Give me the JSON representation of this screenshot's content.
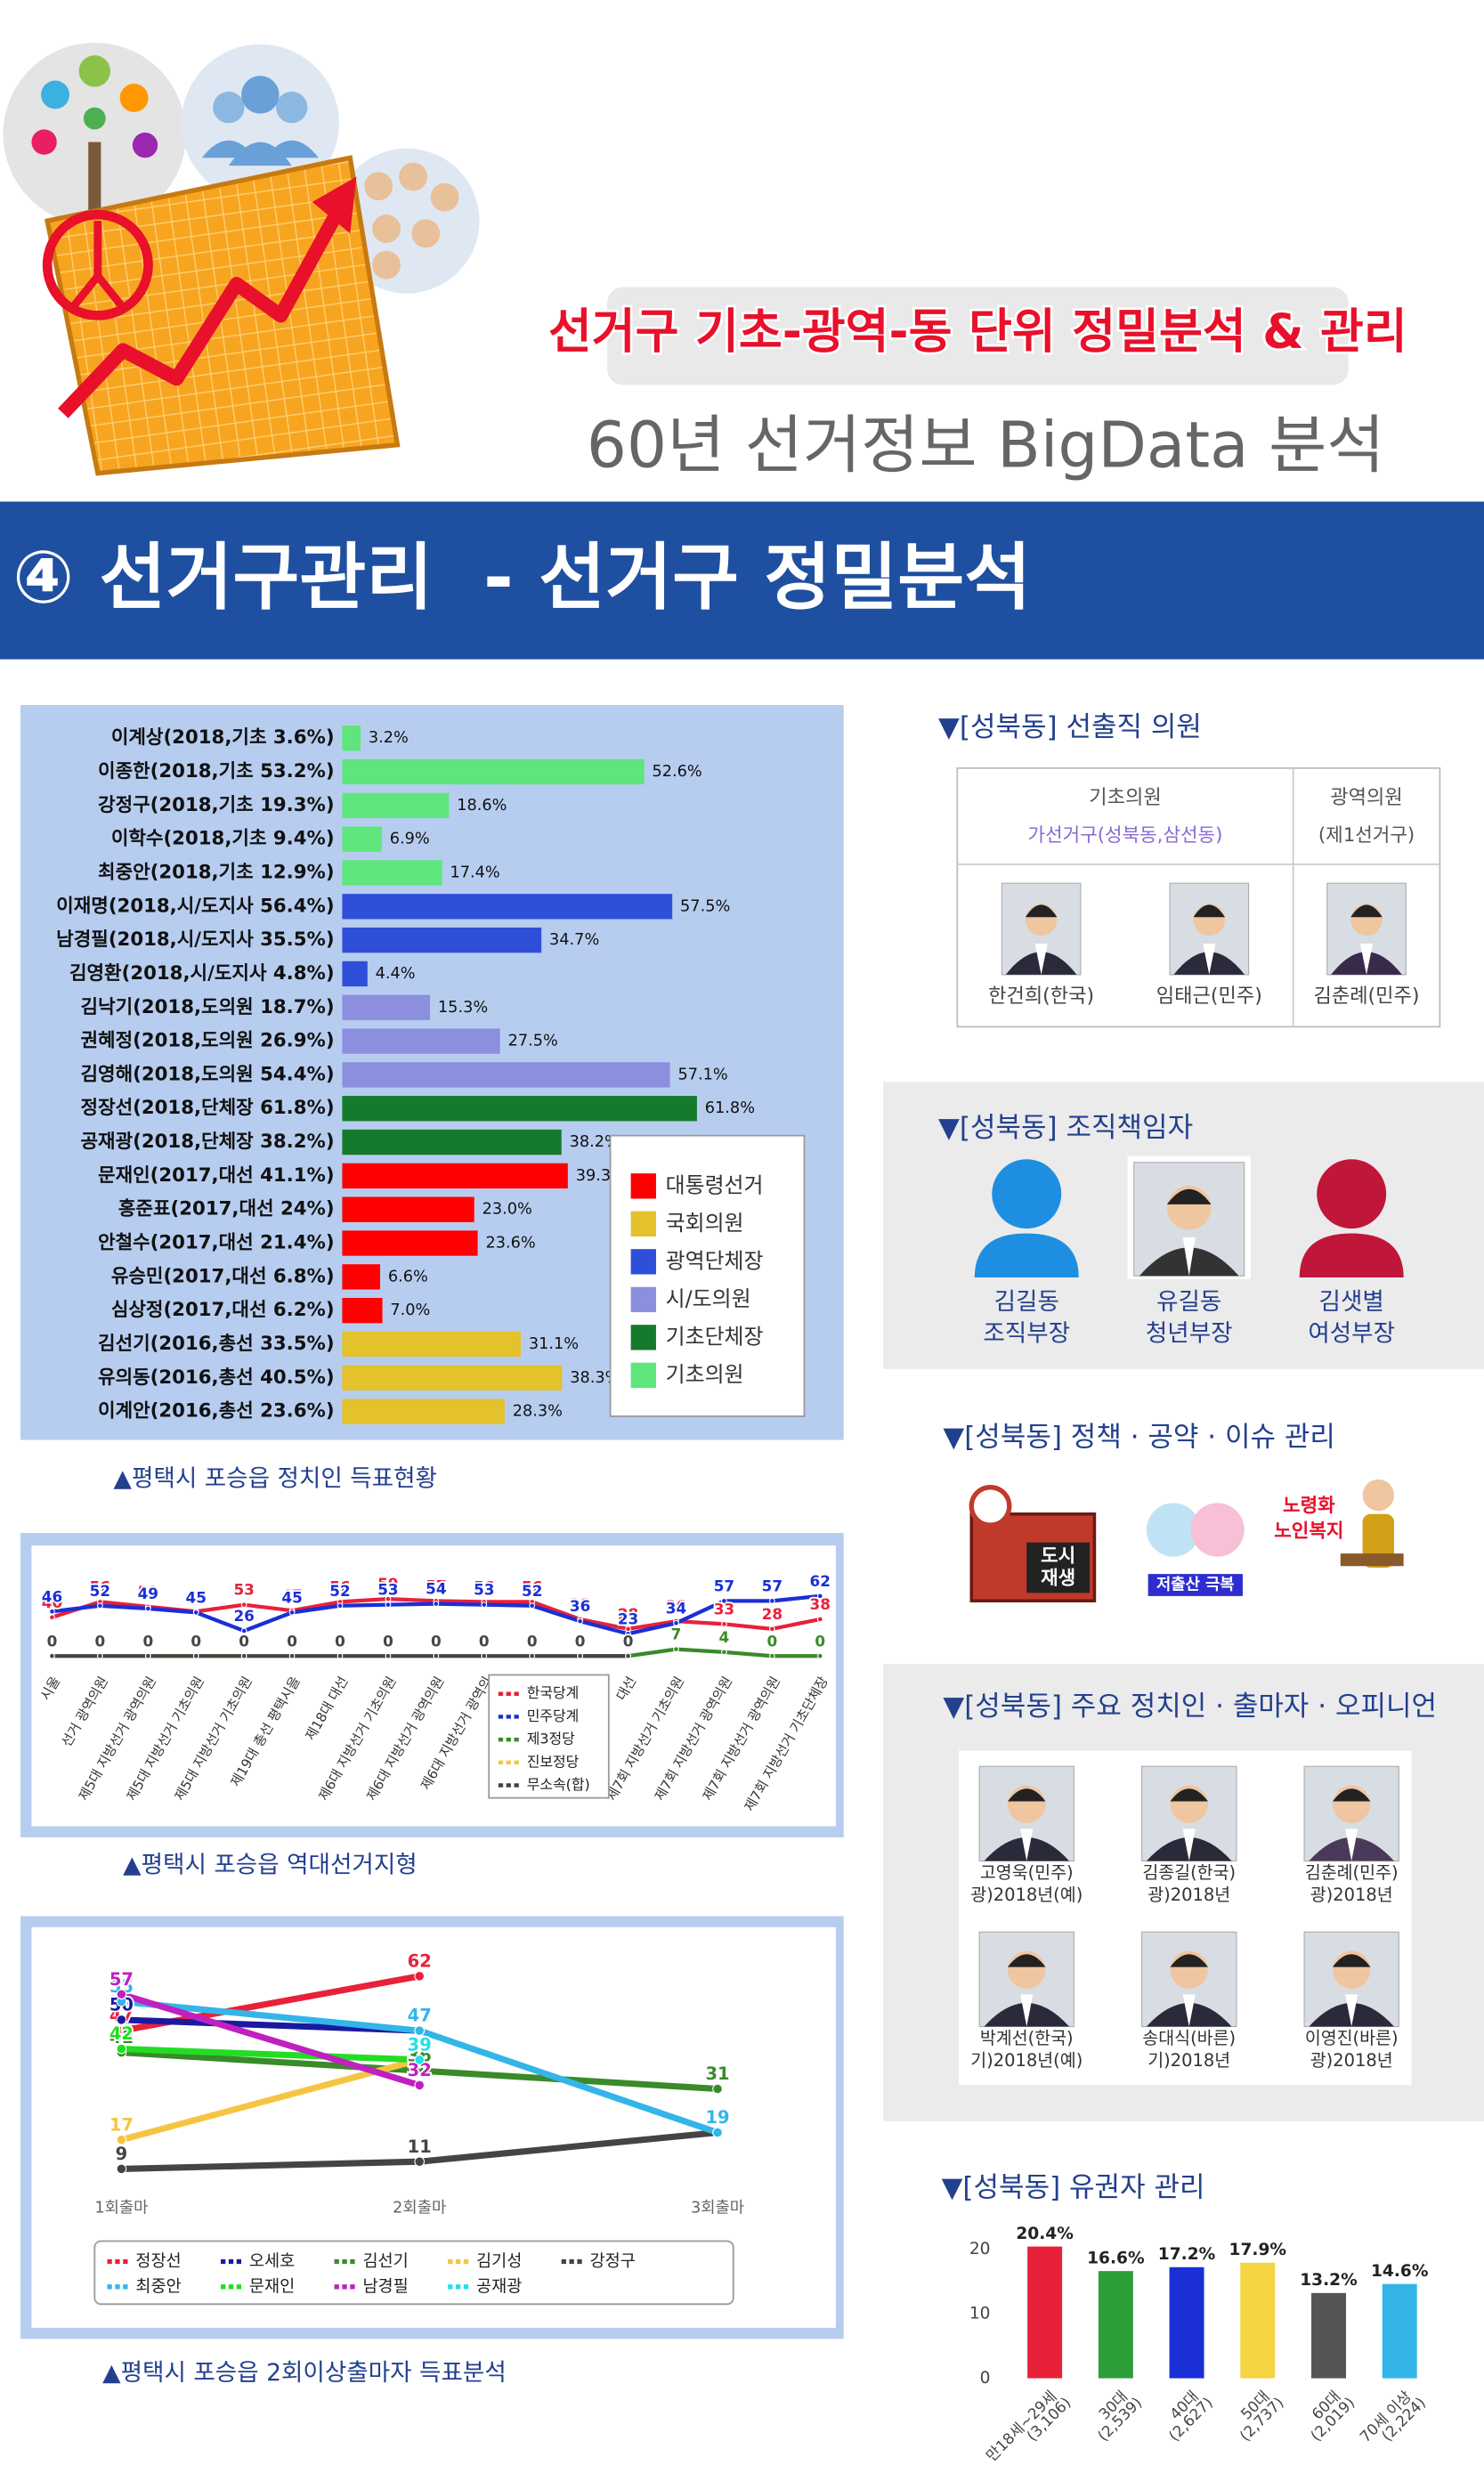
{
  "header": {
    "tagline": "선거구 기초-광역-동 단위 정밀분석 & 관리",
    "subtitle": "60년 선거정보 BigData 분석",
    "section_title": "④ 선거구관리  - 선거구 정밀분석"
  },
  "chart_data": [
    {
      "type": "hbar",
      "caption": "▲평택시 포승읍 정치인 득표현황",
      "categories": [
        "이계상(2018,기초 3.6%)",
        "이종한(2018,기초 53.2%)",
        "강정구(2018,기초 19.3%)",
        "이학수(2018,기초 9.4%)",
        "최중안(2018,기초 12.9%)",
        "이재명(2018,시/도지사 56.4%)",
        "남경필(2018,시/도지사 35.5%)",
        "김영환(2018,시/도지사 4.8%)",
        "김낙기(2018,도의원 18.7%)",
        "권혜정(2018,도의원 26.9%)",
        "김영해(2018,도의원 54.4%)",
        "정장선(2018,단체장 61.8%)",
        "공재광(2018,단체장 38.2%)",
        "문재인(2017,대선 41.1%)",
        "홍준표(2017,대선 24%)",
        "안철수(2017,대선 21.4%)",
        "유승민(2017,대선 6.8%)",
        "심상정(2017,대선 6.2%)",
        "김선기(2016,총선 33.5%)",
        "유의동(2016,총선 40.5%)",
        "이계안(2016,총선 23.6%)"
      ],
      "values": [
        3.2,
        52.6,
        18.6,
        6.9,
        17.4,
        57.5,
        34.7,
        4.4,
        15.3,
        27.5,
        57.1,
        61.8,
        38.2,
        39.3,
        23.0,
        23.6,
        6.6,
        7.0,
        31.1,
        38.3,
        28.3
      ],
      "value_labels": [
        "3.2%",
        "52.6%",
        "18.6%",
        "6.9%",
        "17.4%",
        "57.5%",
        "34.7%",
        "4.4%",
        "15.3%",
        "27.5%",
        "57.1%",
        "61.8%",
        "38.2%",
        "39.3%",
        "23.0%",
        "23.6%",
        "6.6%",
        "7.0%",
        "31.1%",
        "38.3%",
        "28.3%"
      ],
      "groups": [
        "기초의원",
        "기초의원",
        "기초의원",
        "기초의원",
        "기초의원",
        "광역단체장",
        "광역단체장",
        "광역단체장",
        "시/도의원",
        "시/도의원",
        "시/도의원",
        "기초단체장",
        "기초단체장",
        "대통령선거",
        "대통령선거",
        "대통령선거",
        "대통령선거",
        "대통령선거",
        "국회의원",
        "국회의원",
        "국회의원"
      ],
      "legend": [
        {
          "name": "대통령선거",
          "color": "#ff0000"
        },
        {
          "name": "국회의원",
          "color": "#e3c22b"
        },
        {
          "name": "광역단체장",
          "color": "#2f4fd8"
        },
        {
          "name": "시/도의원",
          "color": "#8c8fe0"
        },
        {
          "name": "기초단체장",
          "color": "#167a2c"
        },
        {
          "name": "기초의원",
          "color": "#5ee67c"
        }
      ]
    },
    {
      "type": "line",
      "caption": "▲평택시 포승읍 역대선거지형",
      "categories": [
        "시울",
        "선거 광역의원",
        "제5대 지방선거 광역의원",
        "제5대 지방선거 기초의원",
        "제5대 지방선거 기초의원",
        "제19대 총선 평택시을",
        "제18대 대선",
        "제6대 지방선거 기초의원",
        "제6대 지방선거 광역의원",
        "제6대 지방선거 광역의",
        "제6대 지방선",
        null,
        "대선",
        "제7회 지방선거 기초의원",
        "제7회 지방선거 광역의원",
        "제7회 지방선거 광역의원",
        "제7회 지방선거 기초단체장"
      ],
      "series": [
        {
          "name": "한국당계",
          "color": "#e8213a",
          "values": [
            40,
            56,
            51,
            46,
            53,
            47,
            56,
            59,
            57,
            56,
            56,
            38,
            28,
            36,
            33,
            28,
            38
          ]
        },
        {
          "name": "민주당계",
          "color": "#1a2fd6",
          "values": [
            46,
            52,
            49,
            45,
            26,
            45,
            52,
            53,
            54,
            53,
            52,
            36,
            23,
            34,
            57,
            57,
            62
          ]
        },
        {
          "name": "제3정당",
          "color": "#3a8a2a",
          "values": [
            null,
            null,
            null,
            null,
            null,
            null,
            null,
            null,
            null,
            null,
            null,
            0,
            0,
            7,
            4,
            0,
            0
          ]
        },
        {
          "name": "진보정당",
          "color": "#f5c542",
          "values": [
            0,
            null,
            0,
            0,
            0,
            null,
            null,
            null,
            null,
            null,
            null,
            null,
            null,
            null,
            null,
            null,
            null
          ]
        },
        {
          "name": "무소속(합)",
          "color": "#444444",
          "values": [
            0,
            0,
            0,
            0,
            0,
            0,
            0,
            0,
            0,
            0,
            0,
            0,
            0,
            null,
            null,
            null,
            null
          ]
        }
      ]
    },
    {
      "type": "line",
      "caption": "▲평택시 포승읍 2회이상출마자 득표분석",
      "categories": [
        "1회출마",
        "2회출마",
        "3회출마"
      ],
      "series": [
        {
          "name": "정장선",
          "color": "#e8213a",
          "values": [
            47,
            62,
            null
          ]
        },
        {
          "name": "오세호",
          "color": "#1a1aa0",
          "values": [
            50,
            47,
            null
          ]
        },
        {
          "name": "김선기",
          "color": "#3a8a2a",
          "values": [
            41,
            36,
            31
          ]
        },
        {
          "name": "김기성",
          "color": "#f5c542",
          "values": [
            17,
            39,
            null
          ]
        },
        {
          "name": "강정구",
          "color": "#444444",
          "values": [
            9,
            11,
            19
          ]
        },
        {
          "name": "최중안",
          "color": "#33b5e8",
          "values": [
            55,
            47,
            19
          ]
        },
        {
          "name": "문재인",
          "color": "#22dd22",
          "values": [
            42,
            39,
            null
          ]
        },
        {
          "name": "남경필",
          "color": "#c020c0",
          "values": [
            57,
            32,
            null
          ]
        },
        {
          "name": "공재광",
          "color": "#22e0e8",
          "values": [
            null,
            39,
            null
          ]
        }
      ]
    },
    {
      "type": "bar",
      "title": "▼[성북동] 유권자 관리",
      "categories": [
        [
          "만18세~29세",
          "(3,106)"
        ],
        [
          "30대",
          "(2,539)"
        ],
        [
          "40대",
          "(2,627)"
        ],
        [
          "50대",
          "(2,737)"
        ],
        [
          "60대",
          "(2,019)"
        ],
        [
          "70세 이상",
          "(2,224)"
        ]
      ],
      "values": [
        20.4,
        16.6,
        17.2,
        17.9,
        13.2,
        14.6
      ],
      "value_labels": [
        "20.4%",
        "16.6%",
        "17.2%",
        "17.9%",
        "13.2%",
        "14.6%"
      ],
      "colors": [
        "#e8213a",
        "#2e9e3a",
        "#1a2fd6",
        "#f5d442",
        "#555555",
        "#33b5e8"
      ],
      "ylim": [
        0,
        21
      ],
      "yticks": [
        0,
        10,
        20
      ]
    }
  ],
  "elected": {
    "title": "▼[성북동] 선출직 의원",
    "columns": [
      {
        "header": "기초의원",
        "district": "가선거구(성북동,삼선동)",
        "members": [
          "한건희(한국)",
          "임태근(민주)"
        ]
      },
      {
        "header": "광역의원",
        "district": "(제1선거구)",
        "members": [
          "김춘례(민주)"
        ]
      }
    ]
  },
  "organization": {
    "title": "▼[성북동] 조직책임자",
    "people": [
      {
        "name": "김길동",
        "role": "조직부장"
      },
      {
        "name": "유길동",
        "role": "청년부장"
      },
      {
        "name": "김샛별",
        "role": "여성부장"
      }
    ]
  },
  "issues": {
    "title": "▼[성북동] 정책 · 공약 · 이슈 관리",
    "items": [
      [
        "도시",
        "재생"
      ],
      [
        "저출산 극복"
      ],
      [
        "노령화",
        "노인복지"
      ]
    ]
  },
  "politicians": {
    "title": "▼[성북동] 주요 정치인 · 출마자 · 오피니언",
    "people": [
      {
        "name": "고영욱(민주)",
        "note": "광)2018년(예)"
      },
      {
        "name": "김종길(한국)",
        "note": "광)2018년"
      },
      {
        "name": "김춘례(민주)",
        "note": "광)2018년"
      },
      {
        "name": "박계선(한국)",
        "note": "기)2018년(예)"
      },
      {
        "name": "송대식(바른)",
        "note": "기)2018년"
      },
      {
        "name": "이영진(바른)",
        "note": "광)2018년"
      }
    ]
  }
}
